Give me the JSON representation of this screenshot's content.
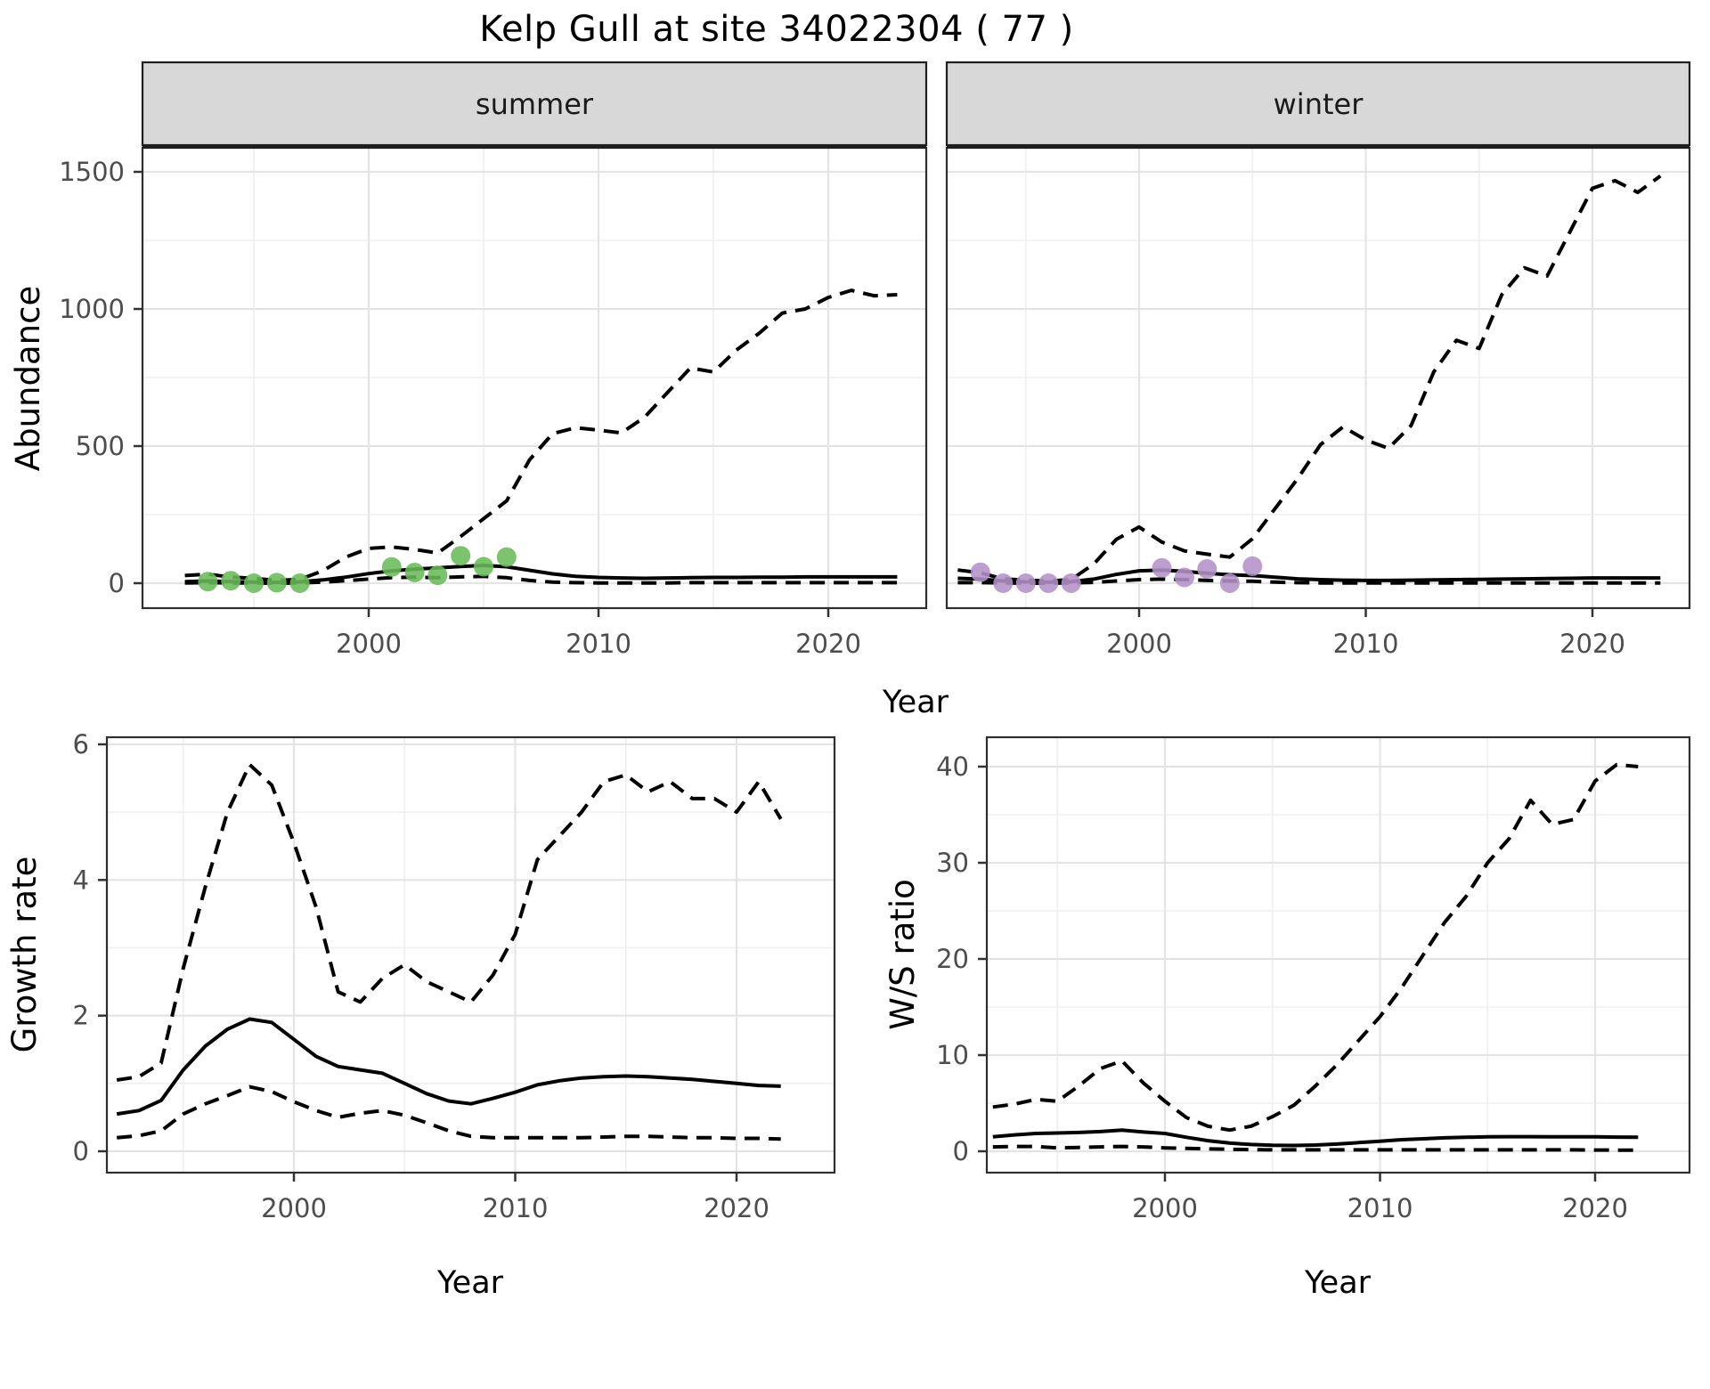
{
  "title": "Kelp Gull at site 34022304 ( 77 )",
  "colors": {
    "summer_points": "#6abb5a",
    "winter_points": "#b492c8",
    "fit_line": "#000000",
    "ci_line": "#000000",
    "strip_bg": "#d8d8d8",
    "strip_border": "#1f1f1f",
    "panel_border": "#2e2e2e",
    "grid_major": "#e4e4e4",
    "grid_minor": "#efefef",
    "axis_text": "#4d4d4d",
    "title_text": "#000000"
  },
  "chart_data": [
    {
      "id": "abundance",
      "type": "line",
      "xlabel": "Year",
      "ylabel": "Abundance",
      "xlim": [
        1990,
        2024.5
      ],
      "ylim": [
        -95,
        1610
      ],
      "grid": true,
      "legend_position": "none",
      "xticks": {
        "values": [
          2000,
          2010,
          2020
        ],
        "labels": [
          "2000",
          "2010",
          "2020"
        ]
      },
      "yticks": {
        "values": [
          0,
          500,
          1000,
          1500
        ],
        "labels": [
          "0",
          "500",
          "1000",
          "1500"
        ]
      },
      "xticks_minor": [
        1995,
        2005,
        2015
      ],
      "yticks_minor": [
        250,
        750,
        1250
      ],
      "facets": [
        {
          "label": "summer",
          "point_color": "#6abb5a",
          "years": [
            1992,
            1993,
            1994,
            1995,
            1996,
            1997,
            1998,
            1999,
            2000,
            2001,
            2002,
            2003,
            2004,
            2005,
            2006,
            2007,
            2008,
            2009,
            2010,
            2011,
            2012,
            2013,
            2014,
            2015,
            2016,
            2017,
            2018,
            2019,
            2020,
            2021,
            2022,
            2023
          ],
          "series": [
            {
              "name": "upper 95% CI",
              "style": "dashed",
              "values": [
                28,
                33,
                22,
                18,
                10,
                14,
                45,
                95,
                127,
                132,
                123,
                110,
                170,
                235,
                300,
                450,
                545,
                567,
                558,
                548,
                605,
                695,
                785,
                770,
                850,
                912,
                985,
                1000,
                1042,
                1068,
                1048,
                1052
              ]
            },
            {
              "name": "model fit",
              "style": "solid",
              "values": [
                6,
                8,
                6,
                4,
                3,
                5,
                12,
                22,
                35,
                45,
                51,
                56,
                61,
                65,
                60,
                47,
                34,
                25,
                21,
                19,
                18,
                19,
                20,
                21,
                21,
                22,
                22,
                23,
                23,
                23,
                23,
                23
              ]
            },
            {
              "name": "lower 95% CI",
              "style": "dashed",
              "values": [
                1,
                2,
                1,
                1,
                0,
                1,
                4,
                9,
                15,
                20,
                22,
                20,
                23,
                25,
                20,
                10,
                4,
                2,
                1,
                1,
                1,
                1,
                2,
                2,
                2,
                2,
                2,
                2,
                2,
                2,
                2,
                2
              ]
            }
          ],
          "observations": {
            "years": [
              1993,
              1994,
              1995,
              1996,
              1997,
              2001,
              2002,
              2003,
              2004,
              2005,
              2006
            ],
            "values": [
              6,
              9,
              0,
              2,
              0,
              59,
              39,
              29,
              100,
              60,
              95
            ]
          }
        },
        {
          "label": "winter",
          "point_color": "#b492c8",
          "years": [
            1992,
            1993,
            1994,
            1995,
            1996,
            1997,
            1998,
            1999,
            2000,
            2001,
            2002,
            2003,
            2004,
            2005,
            2006,
            2007,
            2008,
            2009,
            2010,
            2011,
            2012,
            2013,
            2014,
            2015,
            2016,
            2017,
            2018,
            2019,
            2020,
            2021,
            2022,
            2023
          ],
          "series": [
            {
              "name": "upper 95% CI",
              "style": "dashed",
              "values": [
                48,
                38,
                16,
                11,
                8,
                13,
                70,
                160,
                205,
                150,
                118,
                106,
                95,
                162,
                272,
                382,
                505,
                570,
                522,
                492,
                575,
                770,
                886,
                856,
                1052,
                1150,
                1120,
                1280,
                1440,
                1468,
                1425,
                1485
              ]
            },
            {
              "name": "model fit",
              "style": "solid",
              "values": [
                18,
                15,
                8,
                5,
                4,
                6,
                15,
                32,
                45,
                48,
                43,
                36,
                31,
                28,
                22,
                16,
                13,
                11,
                10,
                10,
                11,
                12,
                13,
                14,
                15,
                16,
                17,
                18,
                19,
                19,
                19,
                19
              ]
            },
            {
              "name": "lower 95% CI",
              "style": "dashed",
              "values": [
                2,
                2,
                1,
                0,
                0,
                1,
                3,
                8,
                13,
                15,
                13,
                10,
                8,
                7,
                4,
                2,
                1,
                1,
                1,
                1,
                1,
                1,
                1,
                1,
                1,
                1,
                1,
                1,
                1,
                1,
                1,
                1
              ]
            }
          ],
          "observations": {
            "years": [
              1993,
              1994,
              1995,
              1996,
              1997,
              2001,
              2002,
              2003,
              2004,
              2005
            ],
            "values": [
              40,
              0,
              0,
              0,
              0,
              56,
              21,
              52,
              0,
              62
            ]
          }
        }
      ]
    },
    {
      "id": "growth_rate",
      "type": "line",
      "xlabel": "Year",
      "ylabel": "Growth rate",
      "xlim": [
        1991.5,
        2024.5
      ],
      "ylim": [
        -0.3,
        6.1
      ],
      "grid": true,
      "legend_position": "none",
      "xticks": {
        "values": [
          2000,
          2010,
          2020
        ],
        "labels": [
          "2000",
          "2010",
          "2020"
        ]
      },
      "yticks": {
        "values": [
          0,
          2,
          4,
          6
        ],
        "labels": [
          "0",
          "2",
          "4",
          "6"
        ]
      },
      "xticks_minor": [
        1995,
        2005,
        2015
      ],
      "yticks_minor": [
        1,
        3,
        5
      ],
      "facets": [
        {
          "label": null,
          "point_color": null,
          "years": [
            1992,
            1993,
            1994,
            1995,
            1996,
            1997,
            1998,
            1999,
            2000,
            2001,
            2002,
            2003,
            2004,
            2005,
            2006,
            2007,
            2008,
            2009,
            2010,
            2011,
            2012,
            2013,
            2014,
            2015,
            2016,
            2017,
            2018,
            2019,
            2020,
            2021,
            2022
          ],
          "series": [
            {
              "name": "upper 95% CI",
              "style": "dashed",
              "values": [
                1.05,
                1.1,
                1.3,
                2.7,
                3.9,
                5.0,
                5.7,
                5.4,
                4.55,
                3.6,
                2.35,
                2.2,
                2.55,
                2.75,
                2.5,
                2.35,
                2.2,
                2.6,
                3.2,
                4.3,
                4.65,
                5.0,
                5.45,
                5.55,
                5.3,
                5.45,
                5.2,
                5.2,
                5.0,
                5.45,
                4.9
              ]
            },
            {
              "name": "model fit",
              "style": "solid",
              "values": [
                0.55,
                0.6,
                0.75,
                1.2,
                1.55,
                1.8,
                1.95,
                1.9,
                1.65,
                1.4,
                1.25,
                1.2,
                1.15,
                1.0,
                0.85,
                0.74,
                0.7,
                0.78,
                0.87,
                0.98,
                1.04,
                1.08,
                1.1,
                1.11,
                1.1,
                1.08,
                1.06,
                1.03,
                1.0,
                0.97,
                0.96
              ]
            },
            {
              "name": "lower 95% CI",
              "style": "dashed",
              "values": [
                0.2,
                0.23,
                0.3,
                0.55,
                0.7,
                0.82,
                0.95,
                0.88,
                0.73,
                0.6,
                0.5,
                0.56,
                0.6,
                0.53,
                0.42,
                0.3,
                0.22,
                0.2,
                0.2,
                0.2,
                0.2,
                0.2,
                0.21,
                0.22,
                0.22,
                0.21,
                0.2,
                0.2,
                0.19,
                0.19,
                0.18
              ]
            }
          ],
          "observations": null
        }
      ]
    },
    {
      "id": "ws_ratio",
      "type": "line",
      "xlabel": "Year",
      "ylabel": "W/S ratio",
      "xlim": [
        1991.5,
        2024.5
      ],
      "ylim": [
        -1.8,
        42.5
      ],
      "grid": true,
      "legend_position": "none",
      "xticks": {
        "values": [
          2000,
          2010,
          2020
        ],
        "labels": [
          "2000",
          "2010",
          "2020"
        ]
      },
      "yticks": {
        "values": [
          0,
          10,
          20,
          30,
          40
        ],
        "labels": [
          "0",
          "10",
          "20",
          "30",
          "40"
        ]
      },
      "xticks_minor": [
        1995,
        2005,
        2015
      ],
      "yticks_minor": [
        5,
        15,
        25,
        35
      ],
      "facets": [
        {
          "label": null,
          "point_color": null,
          "years": [
            1992,
            1993,
            1994,
            1995,
            1996,
            1997,
            1998,
            1999,
            2000,
            2001,
            2002,
            2003,
            2004,
            2005,
            2006,
            2007,
            2008,
            2009,
            2010,
            2011,
            2012,
            2013,
            2014,
            2015,
            2016,
            2017,
            2018,
            2019,
            2020,
            2021,
            2022
          ],
          "series": [
            {
              "name": "upper 95% CI",
              "style": "dashed",
              "values": [
                4.6,
                4.9,
                5.4,
                5.2,
                6.8,
                8.6,
                9.4,
                7.1,
                5.2,
                3.5,
                2.6,
                2.2,
                2.6,
                3.6,
                4.8,
                6.8,
                9.0,
                11.5,
                14.0,
                17.0,
                20.4,
                23.8,
                26.5,
                30.0,
                32.5,
                36.5,
                34.0,
                34.5,
                38.5,
                40.2,
                40.0
              ]
            },
            {
              "name": "model fit",
              "style": "solid",
              "values": [
                1.5,
                1.7,
                1.85,
                1.9,
                1.95,
                2.05,
                2.2,
                2.0,
                1.85,
                1.45,
                1.1,
                0.85,
                0.7,
                0.62,
                0.6,
                0.65,
                0.75,
                0.9,
                1.05,
                1.2,
                1.3,
                1.4,
                1.45,
                1.5,
                1.52,
                1.52,
                1.5,
                1.5,
                1.5,
                1.47,
                1.45
              ]
            },
            {
              "name": "lower 95% CI",
              "style": "dashed",
              "values": [
                0.45,
                0.5,
                0.5,
                0.35,
                0.4,
                0.45,
                0.5,
                0.45,
                0.35,
                0.3,
                0.25,
                0.2,
                0.18,
                0.15,
                0.15,
                0.15,
                0.15,
                0.15,
                0.15,
                0.15,
                0.15,
                0.15,
                0.15,
                0.15,
                0.15,
                0.15,
                0.15,
                0.15,
                0.13,
                0.12,
                0.12
              ]
            }
          ],
          "observations": null
        }
      ]
    }
  ]
}
